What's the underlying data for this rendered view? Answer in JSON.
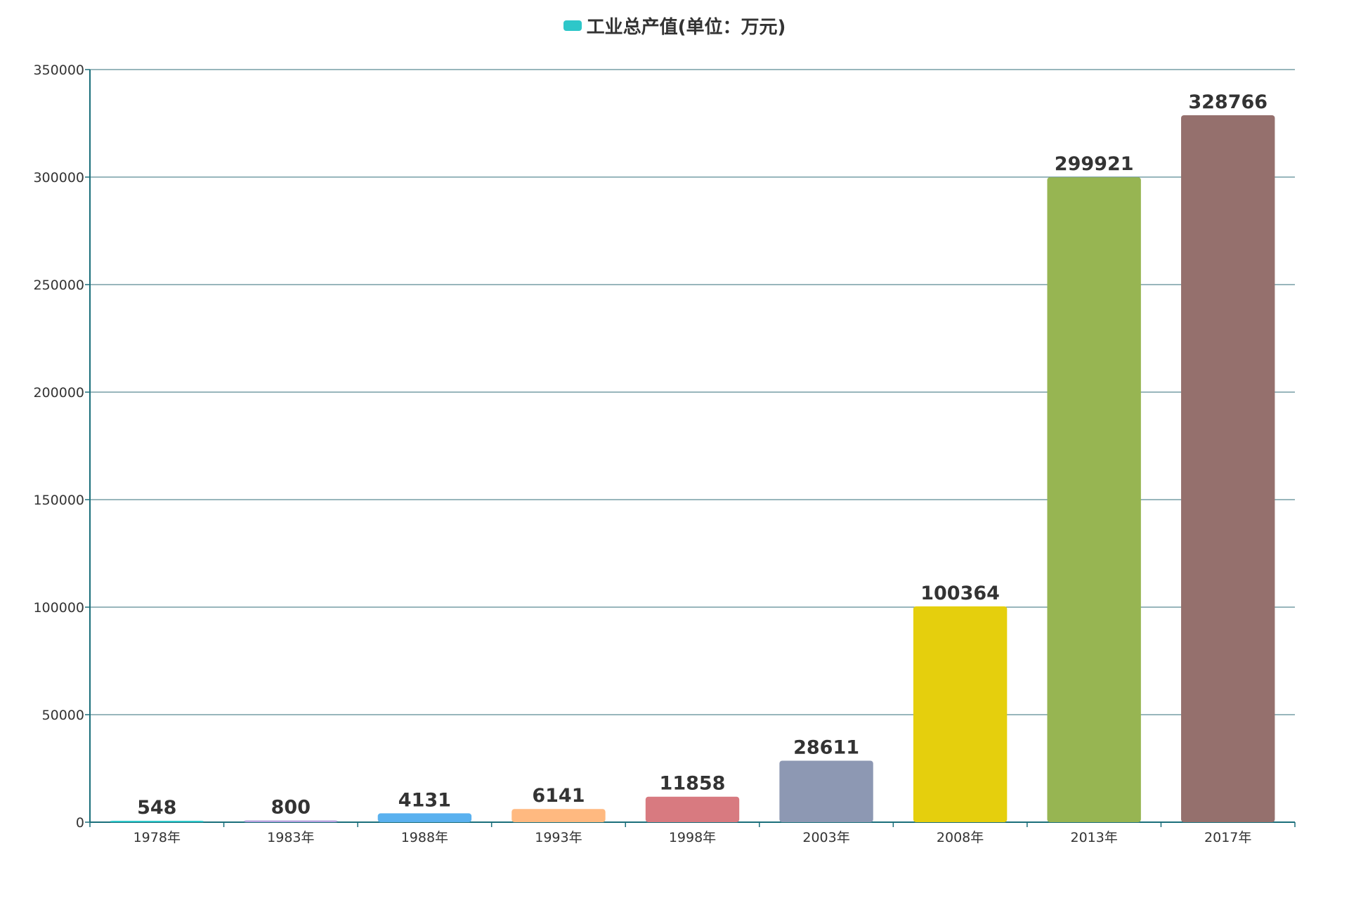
{
  "chart_data": {
    "type": "bar",
    "legend": {
      "label": "工业总产值(单位：万元)",
      "color": "#2ec7c9",
      "position": "top-center"
    },
    "categories": [
      "1978年",
      "1983年",
      "1988年",
      "1993年",
      "1998年",
      "2003年",
      "2008年",
      "2013年",
      "2017年"
    ],
    "series": [
      {
        "name": "工业总产值(单位：万元)",
        "values": [
          548,
          800,
          4131,
          6141,
          11858,
          28611,
          100364,
          299921,
          328766
        ]
      }
    ],
    "bar_colors": [
      "#2ec7c9",
      "#b6a2de",
      "#5ab1ef",
      "#ffb980",
      "#d87a80",
      "#8d98b3",
      "#e5cf0d",
      "#97b552",
      "#95706d"
    ],
    "ylim": [
      0,
      350000
    ],
    "y_ticks": [
      "0",
      "50000",
      "100000",
      "150000",
      "200000",
      "250000",
      "300000",
      "350000"
    ],
    "grid": true,
    "axis_color": "#1a6e7a",
    "grid_color": "#5a8a94"
  }
}
